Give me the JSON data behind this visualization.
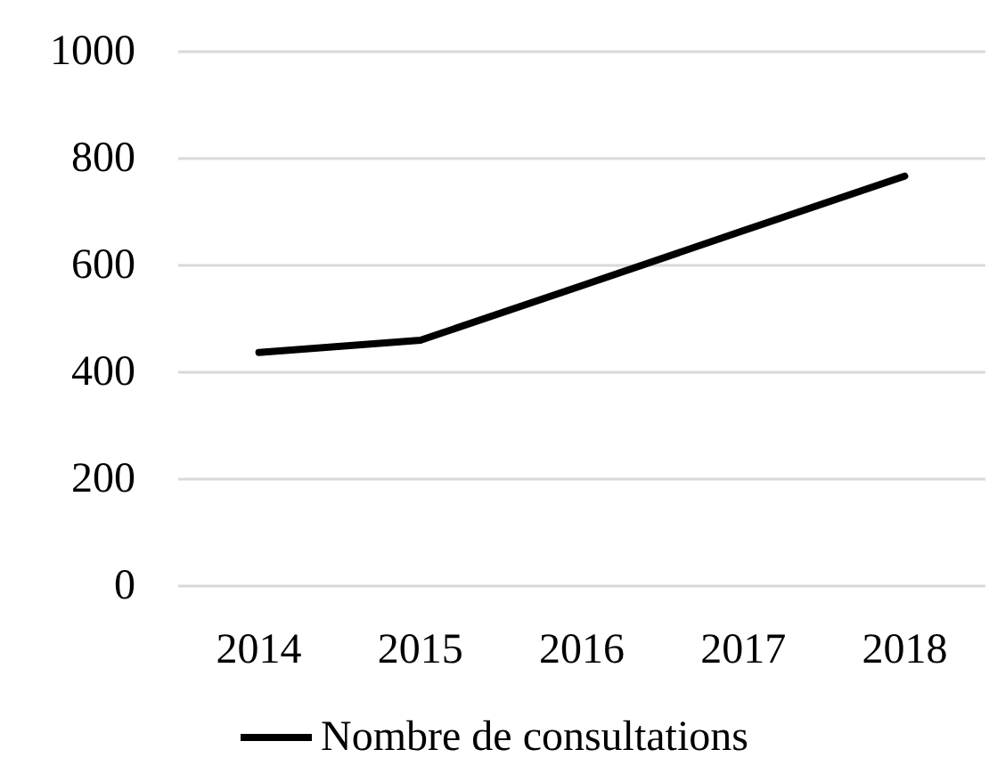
{
  "chart_data": {
    "type": "line",
    "categories": [
      "2014",
      "2015",
      "2016",
      "2017",
      "2018"
    ],
    "series": [
      {
        "name": "Nombre de consultations",
        "color": "#000000",
        "values": [
          437,
          460,
          562,
          665,
          767
        ]
      }
    ],
    "ylim": [
      0,
      1000
    ],
    "yticks": [
      0,
      200,
      400,
      600,
      800,
      1000
    ],
    "grid": "y",
    "legend": "bottom",
    "marker": "none",
    "line_style": "solid"
  }
}
